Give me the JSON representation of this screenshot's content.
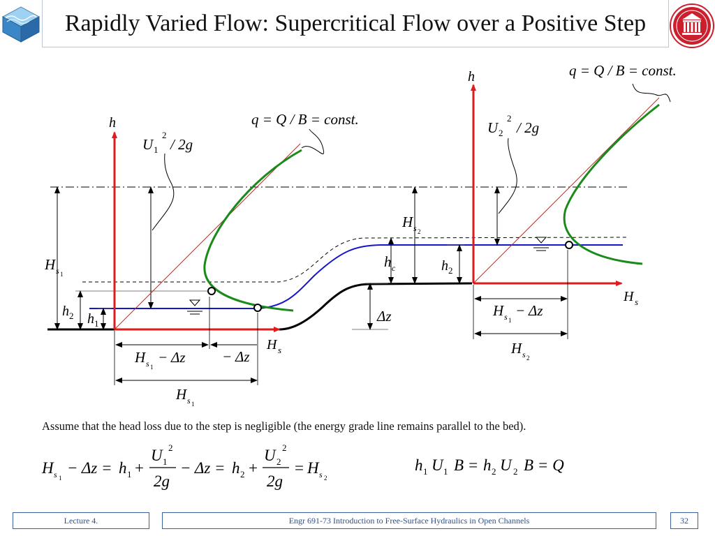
{
  "slide": {
    "title": "Rapidly Varied Flow: Supercritical Flow over a Positive Step",
    "note": "Assume that the head loss due to the step is negligible (the energy grade line remains parallel to the bed).",
    "page_number": "32"
  },
  "footer": {
    "lecture": "Lecture 4.",
    "course": "Engr 691-73 Introduction to Free-Surface Hydraulics in Open Channels"
  },
  "colors": {
    "axis_red": "#e01b1b",
    "specific_energy_green": "#1a8a1a",
    "water_surface_blue": "#1515cc",
    "bed_black": "#000000"
  },
  "left_plot": {
    "h_axis": "h",
    "hs_axis": "H",
    "hs_axis_sub": "s",
    "q_label": "q = Q / B = const.",
    "u_label_main": "U",
    "u_label_sub": "1",
    "u_label_sup": "2",
    "u_label_tail": "/ 2g",
    "h2": "h",
    "h2_sub": "2",
    "h1": "h",
    "h1_sub": "1",
    "hs1_main": "H",
    "hs1_sub": "s",
    "hs1_subsub": "1",
    "hs1_minus_dz_main": "H",
    "hs1_minus_dz_sub": "s",
    "hs1_minus_dz_subsub": "1",
    "hs1_minus_dz_tail": "− Δz",
    "minus_dz": "− Δz",
    "hs1_bottom_main": "H",
    "hs1_bottom_sub": "s",
    "hs1_bottom_subsub": "1"
  },
  "channel": {
    "hs2_main": "H",
    "hs2_sub": "s",
    "hs2_subsub": "2",
    "hc_main": "h",
    "hc_sub": "c",
    "dz": "Δz"
  },
  "right_plot": {
    "h_axis": "h",
    "hs_axis": "H",
    "hs_axis_sub": "s",
    "q_label": "q = Q / B = const.",
    "u_label_main": "U",
    "u_label_sub": "2",
    "u_label_sup": "2",
    "u_label_tail": "/ 2g",
    "h2": "h",
    "h2_sub": "2",
    "hs1_minus_dz_main": "H",
    "hs1_minus_dz_sub": "s",
    "hs1_minus_dz_subsub": "1",
    "hs1_minus_dz_tail": "− Δz",
    "hs2_main": "H",
    "hs2_sub": "s",
    "hs2_subsub": "2"
  },
  "equations": {
    "energy": {
      "lhs_main": "H",
      "lhs_sub": "s",
      "lhs_subsub": "1",
      "minus_dz_1": "− Δz =",
      "h1_main": "h",
      "h1_sub": "1",
      "plus_1": "+",
      "u1_num": "U",
      "u1_num_sub": "1",
      "u1_num_sup": "2",
      "den_1": "2g",
      "minus_dz_2": "− Δz =",
      "h2_main": "h",
      "h2_sub": "2",
      "plus_2": "+",
      "u2_num": "U",
      "u2_num_sub": "2",
      "u2_num_sup": "2",
      "den_2": "2g",
      "eq_end": "=",
      "rhs_main": "H",
      "rhs_sub": "s",
      "rhs_subsub": "2"
    },
    "continuity": {
      "h1": "h",
      "h1_sub": "1",
      "u1": "U",
      "u1_sub": "1",
      "b1": "B =",
      "h2": "h",
      "h2_sub": "2",
      "u2": "U",
      "u2_sub": "2",
      "b2": "B = Q"
    }
  }
}
